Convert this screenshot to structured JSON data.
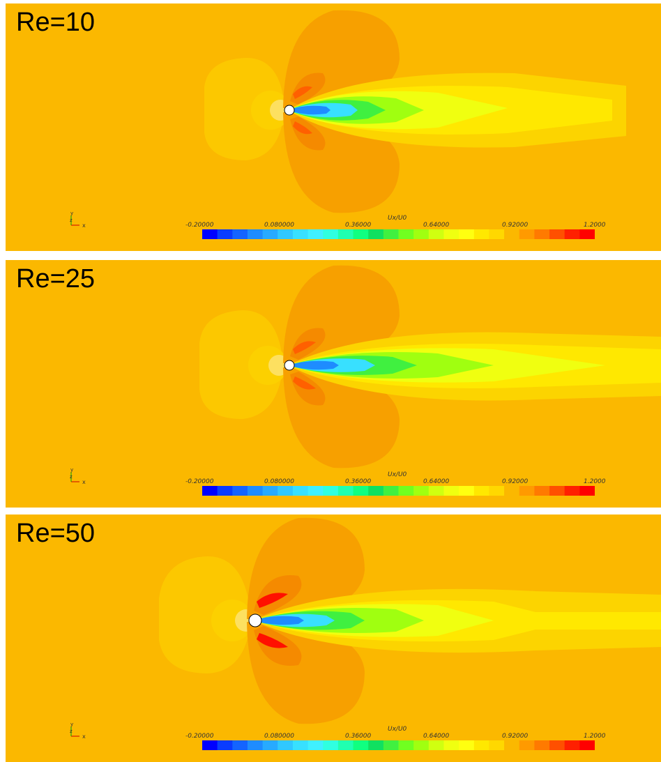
{
  "panels": [
    {
      "label": "Re=10"
    },
    {
      "label": "Re=25"
    },
    {
      "label": "Re=50"
    }
  ],
  "colorbar": {
    "title": "Ux/U0",
    "ticks": [
      "-0.20000",
      "0.080000",
      "0.36000",
      "0.64000",
      "0.92000",
      "1.2000"
    ],
    "range": [
      -0.2,
      1.2
    ],
    "colors": [
      "#0000ff",
      "#0a3cff",
      "#1464ff",
      "#1e8cff",
      "#28aaff",
      "#30c8ff",
      "#38e0ff",
      "#40f0ff",
      "#30ffe0",
      "#20ffb0",
      "#10ff80",
      "#10e060",
      "#40f040",
      "#70ff20",
      "#a0ff10",
      "#d0ff10",
      "#f0ff10",
      "#ffff10",
      "#ffe800",
      "#ffd800",
      "#fbb800",
      "#ff9a00",
      "#ff7a00",
      "#ff5000",
      "#ff2000",
      "#ff0000"
    ]
  },
  "axes": {
    "x": "x",
    "y": "y",
    "z": "z"
  },
  "colors": {
    "background": "#fbb800",
    "upstream": "#fcc800",
    "side_lobe": "#f7a000",
    "peak": "#ff5000",
    "wake_core": "#1e8cff",
    "wake_mid": "#38e0ff",
    "wake_green": "#40f040",
    "wake_yellow": "#f0ff10",
    "cylinder": "#ffffff"
  }
}
